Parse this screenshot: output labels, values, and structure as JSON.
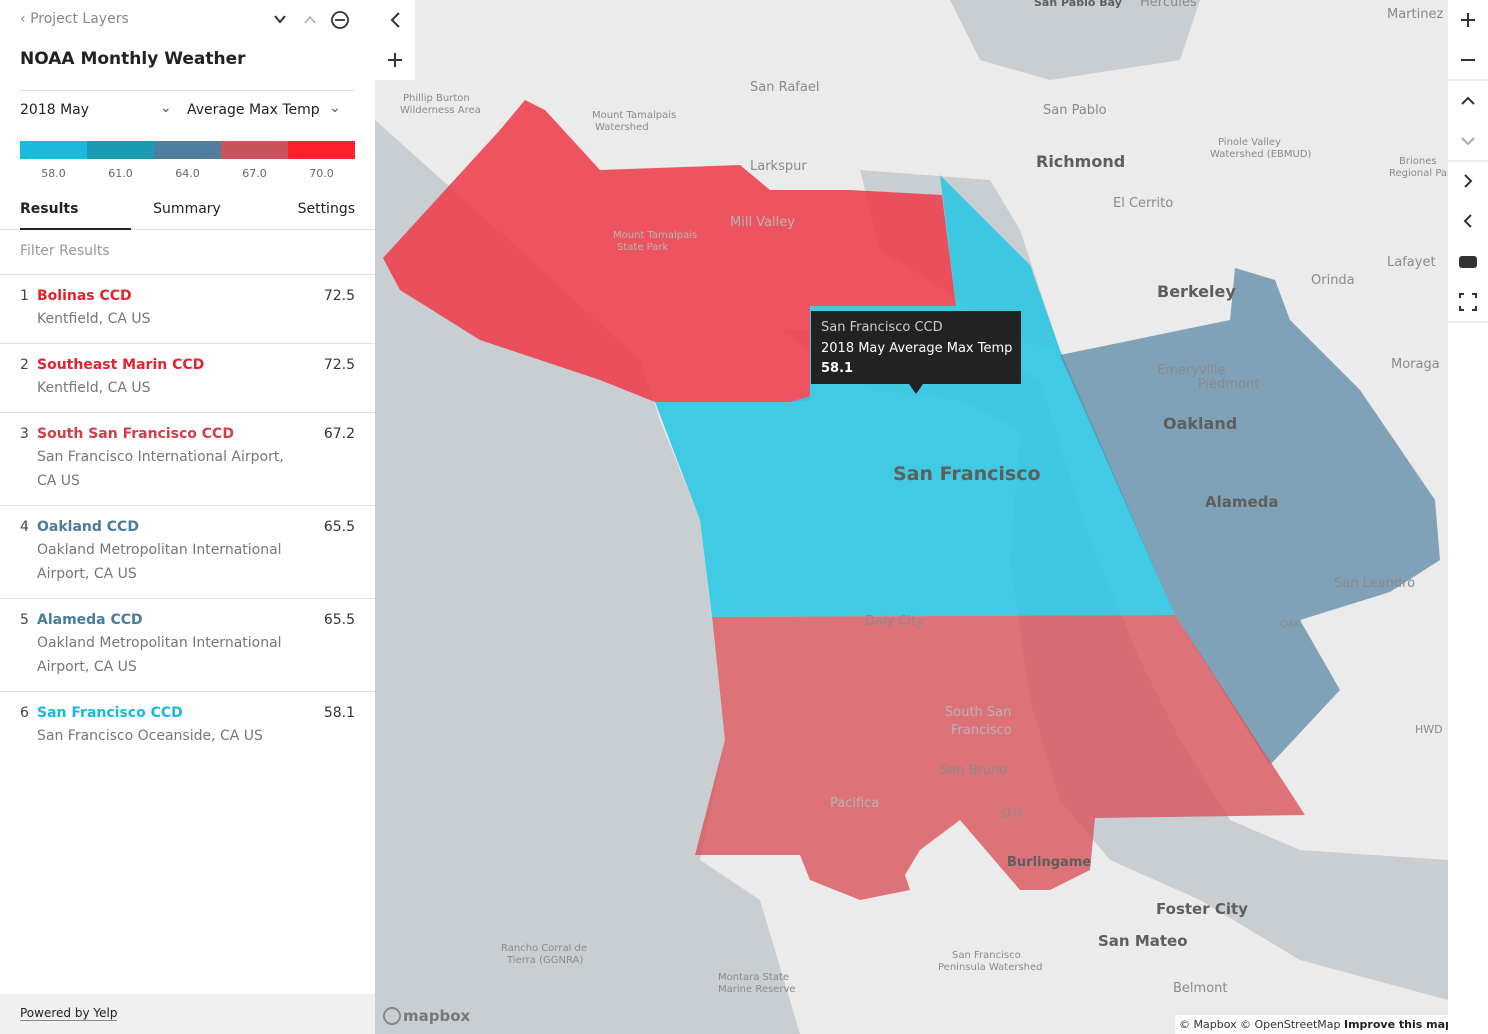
{
  "sidebar": {
    "back": "Project Layers",
    "title": "NOAA Monthly Weather",
    "period": "2018 May",
    "metric": "Average Max Temp",
    "legend": {
      "colors": [
        "#1ab9de",
        "#1b9bb3",
        "#4f7e9e",
        "#c9545c",
        "#ff1f2d"
      ],
      "labels": [
        "58.0",
        "61.0",
        "64.0",
        "67.0",
        "70.0"
      ]
    },
    "tabs": [
      "Results",
      "Summary",
      "Settings"
    ],
    "filter_placeholder": "Filter Results",
    "results": [
      {
        "rank": "1",
        "name": "Bolinas CCD",
        "location": "Kentfield, CA US",
        "value": "72.5",
        "color": "#e8202f"
      },
      {
        "rank": "2",
        "name": "Southeast Marin CCD",
        "location": "Kentfield, CA US",
        "value": "72.5",
        "color": "#e8202f"
      },
      {
        "rank": "3",
        "name": "South San Francisco CCD",
        "location": "San Francisco International Airport, CA US",
        "value": "67.2",
        "color": "#d23d47"
      },
      {
        "rank": "4",
        "name": "Oakland CCD",
        "location": "Oakland Metropolitan International Airport, CA US",
        "value": "65.5",
        "color": "#4a7c9c"
      },
      {
        "rank": "5",
        "name": "Alameda CCD",
        "location": "Oakland Metropolitan International Airport, CA US",
        "value": "65.5",
        "color": "#4a7c9c"
      },
      {
        "rank": "6",
        "name": "San Francisco CCD",
        "location": "San Francisco Oceanside, CA US",
        "value": "58.1",
        "color": "#19b8dc"
      }
    ],
    "footer": "Powered by Yelp"
  },
  "map": {
    "places": [
      "San Pablo Bay",
      "Hercules",
      "Martinez",
      "San Rafael",
      "San Pablo",
      "Richmond",
      "El Cerrito",
      "Larkspur",
      "Mill Valley",
      "Berkeley",
      "Orinda",
      "Lafayet",
      "Emeryville",
      "Piedmont",
      "Moraga",
      "Oakland",
      "Alameda",
      "San Francisco",
      "Daly City",
      "San Leandro",
      "San Bruno",
      "Pacifica",
      "SFO",
      "Burlingame",
      "Foster City",
      "San Mateo",
      "Belmont",
      "HWD",
      "OAK",
      "Phillip Burton",
      "Wilderness Area",
      "Mount Tamalpais",
      "Watershed",
      "Pinole Valley",
      "Watershed (EBMUD)",
      "Briones",
      "Regional Park",
      "Mount Tamalpais",
      "State Park",
      "South San",
      "Francisco",
      "Rancho Corral de",
      "Tierra (GGNRA)",
      "San Francisco",
      "Peninsula Watershed",
      "Montara State",
      "Marine Reserve"
    ],
    "tooltip": {
      "name": "San Francisco CCD",
      "title": "2018 May Average Max Temp",
      "value": "58.1"
    },
    "logo": "mapbox",
    "attribution": [
      "© Mapbox",
      "© OpenStreetMap",
      "Improve this map"
    ]
  }
}
